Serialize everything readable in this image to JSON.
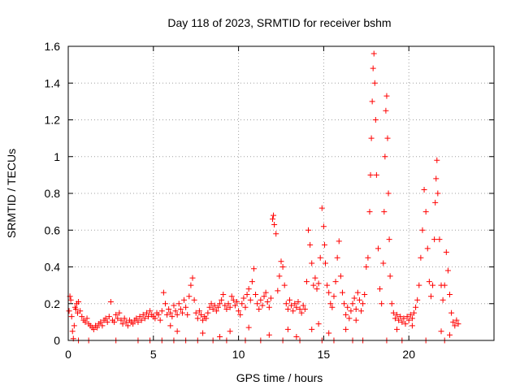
{
  "chart_data": {
    "type": "scatter",
    "title": "Day 118 of 2023, SRMTID for receiver bshm",
    "xlabel": "GPS time / hours",
    "ylabel": "SRMTID / TECUs",
    "xlim": [
      0,
      25
    ],
    "ylim": [
      0,
      1.6
    ],
    "x_ticks": [
      0,
      5,
      10,
      15,
      20
    ],
    "x_tick_labels": [
      "0",
      "5",
      "10",
      "15",
      "20"
    ],
    "y_ticks": [
      0,
      0.2,
      0.4,
      0.6,
      0.8,
      1.0,
      1.2,
      1.4,
      1.6
    ],
    "y_tick_labels": [
      "0",
      "0.2",
      "0.4",
      "0.6",
      "0.8",
      "1",
      "1.2",
      "1.4",
      "1.6"
    ],
    "grid": true,
    "marker": "+",
    "colors": {
      "series": "#ff0000",
      "grid": "#a0a0a0",
      "axes": "#000000"
    },
    "series": [
      {
        "name": "SRMTID",
        "points": [
          [
            0.05,
            0.16
          ],
          [
            0.1,
            0.24
          ],
          [
            0.15,
            0.22
          ],
          [
            0.2,
            0.13
          ],
          [
            0.25,
            0.05
          ],
          [
            0.3,
            0.01
          ],
          [
            0.35,
            0.08
          ],
          [
            0.4,
            0.18
          ],
          [
            0.45,
            0.17
          ],
          [
            0.5,
            0.2
          ],
          [
            0.55,
            0.15
          ],
          [
            0.6,
            0.21
          ],
          [
            0.7,
            0.16
          ],
          [
            0.8,
            0.13
          ],
          [
            0.9,
            0.11
          ],
          [
            1.0,
            0.1
          ],
          [
            1.1,
            0.12
          ],
          [
            1.2,
            0.09
          ],
          [
            1.3,
            0.08
          ],
          [
            1.4,
            0.07
          ],
          [
            1.5,
            0.06
          ],
          [
            1.6,
            0.08
          ],
          [
            1.7,
            0.07
          ],
          [
            1.8,
            0.09
          ],
          [
            1.9,
            0.1
          ],
          [
            2.0,
            0.08
          ],
          [
            2.1,
            0.11
          ],
          [
            2.2,
            0.12
          ],
          [
            2.3,
            0.1
          ],
          [
            2.4,
            0.13
          ],
          [
            2.5,
            0.21
          ],
          [
            2.6,
            0.11
          ],
          [
            2.7,
            0.1
          ],
          [
            2.8,
            0.14
          ],
          [
            2.9,
            0.12
          ],
          [
            3.0,
            0.15
          ],
          [
            3.1,
            0.11
          ],
          [
            3.2,
            0.09
          ],
          [
            3.3,
            0.12
          ],
          [
            3.4,
            0.1
          ],
          [
            3.5,
            0.08
          ],
          [
            3.6,
            0.11
          ],
          [
            3.7,
            0.1
          ],
          [
            3.8,
            0.09
          ],
          [
            3.9,
            0.11
          ],
          [
            4.0,
            0.12
          ],
          [
            4.1,
            0.1
          ],
          [
            4.2,
            0.13
          ],
          [
            4.3,
            0.11
          ],
          [
            4.4,
            0.14
          ],
          [
            4.5,
            0.12
          ],
          [
            4.6,
            0.15
          ],
          [
            4.7,
            0.13
          ],
          [
            4.8,
            0.16
          ],
          [
            4.9,
            0.14
          ],
          [
            5.0,
            0.13
          ],
          [
            5.1,
            0.12
          ],
          [
            5.2,
            0.15
          ],
          [
            5.3,
            0.14
          ],
          [
            5.4,
            0.11
          ],
          [
            5.5,
            0.16
          ],
          [
            5.6,
            0.26
          ],
          [
            5.7,
            0.2
          ],
          [
            5.8,
            0.14
          ],
          [
            5.9,
            0.17
          ],
          [
            6.0,
            0.15
          ],
          [
            6.1,
            0.13
          ],
          [
            6.2,
            0.19
          ],
          [
            6.3,
            0.16
          ],
          [
            6.4,
            0.14
          ],
          [
            6.5,
            0.2
          ],
          [
            6.6,
            0.17
          ],
          [
            6.7,
            0.15
          ],
          [
            6.8,
            0.22
          ],
          [
            6.9,
            0.18
          ],
          [
            7.0,
            0.14
          ],
          [
            7.1,
            0.24
          ],
          [
            7.2,
            0.3
          ],
          [
            7.3,
            0.34
          ],
          [
            7.4,
            0.22
          ],
          [
            7.5,
            0.15
          ],
          [
            7.6,
            0.12
          ],
          [
            7.7,
            0.16
          ],
          [
            7.8,
            0.14
          ],
          [
            7.9,
            0.11
          ],
          [
            8.0,
            0.13
          ],
          [
            8.1,
            0.12
          ],
          [
            8.2,
            0.15
          ],
          [
            8.3,
            0.18
          ],
          [
            8.4,
            0.2
          ],
          [
            8.5,
            0.17
          ],
          [
            8.6,
            0.19
          ],
          [
            8.7,
            0.16
          ],
          [
            8.8,
            0.18
          ],
          [
            8.9,
            0.2
          ],
          [
            9.0,
            0.22
          ],
          [
            9.1,
            0.25
          ],
          [
            9.2,
            0.19
          ],
          [
            9.3,
            0.17
          ],
          [
            9.4,
            0.2
          ],
          [
            9.5,
            0.18
          ],
          [
            9.6,
            0.24
          ],
          [
            9.7,
            0.22
          ],
          [
            9.8,
            0.19
          ],
          [
            9.9,
            0.21
          ],
          [
            10.0,
            0.16
          ],
          [
            10.1,
            0.14
          ],
          [
            10.2,
            0.2
          ],
          [
            10.3,
            0.23
          ],
          [
            10.4,
            0.18
          ],
          [
            10.5,
            0.25
          ],
          [
            10.6,
            0.28
          ],
          [
            10.7,
            0.22
          ],
          [
            10.8,
            0.32
          ],
          [
            10.9,
            0.39
          ],
          [
            11.0,
            0.25
          ],
          [
            11.1,
            0.2
          ],
          [
            11.2,
            0.17
          ],
          [
            11.3,
            0.22
          ],
          [
            11.4,
            0.19
          ],
          [
            11.5,
            0.24
          ],
          [
            11.6,
            0.26
          ],
          [
            11.7,
            0.21
          ],
          [
            11.8,
            0.18
          ],
          [
            11.9,
            0.23
          ],
          [
            12.0,
            0.66
          ],
          [
            12.05,
            0.68
          ],
          [
            12.1,
            0.63
          ],
          [
            12.2,
            0.58
          ],
          [
            12.3,
            0.27
          ],
          [
            12.4,
            0.35
          ],
          [
            12.5,
            0.43
          ],
          [
            12.6,
            0.4
          ],
          [
            12.7,
            0.3
          ],
          [
            12.8,
            0.2
          ],
          [
            12.9,
            0.17
          ],
          [
            13.0,
            0.22
          ],
          [
            13.1,
            0.19
          ],
          [
            13.2,
            0.16
          ],
          [
            13.3,
            0.2
          ],
          [
            13.4,
            0.18
          ],
          [
            13.5,
            0.21
          ],
          [
            13.6,
            0.17
          ],
          [
            13.7,
            0.15
          ],
          [
            13.8,
            0.19
          ],
          [
            13.9,
            0.17
          ],
          [
            14.0,
            0.32
          ],
          [
            14.1,
            0.6
          ],
          [
            14.2,
            0.52
          ],
          [
            14.3,
            0.42
          ],
          [
            14.4,
            0.3
          ],
          [
            14.5,
            0.34
          ],
          [
            14.6,
            0.28
          ],
          [
            14.7,
            0.31
          ],
          [
            14.8,
            0.45
          ],
          [
            14.9,
            0.72
          ],
          [
            15.0,
            0.62
          ],
          [
            15.05,
            0.52
          ],
          [
            15.1,
            0.42
          ],
          [
            15.2,
            0.3
          ],
          [
            15.3,
            0.26
          ],
          [
            15.4,
            0.2
          ],
          [
            15.5,
            0.18
          ],
          [
            15.6,
            0.24
          ],
          [
            15.7,
            0.32
          ],
          [
            15.8,
            0.45
          ],
          [
            15.9,
            0.54
          ],
          [
            16.0,
            0.35
          ],
          [
            16.1,
            0.26
          ],
          [
            16.2,
            0.2
          ],
          [
            16.3,
            0.14
          ],
          [
            16.4,
            0.18
          ],
          [
            16.5,
            0.12
          ],
          [
            16.6,
            0.16
          ],
          [
            16.7,
            0.2
          ],
          [
            16.8,
            0.23
          ],
          [
            16.9,
            0.17
          ],
          [
            17.0,
            0.26
          ],
          [
            17.1,
            0.22
          ],
          [
            17.2,
            0.16
          ],
          [
            17.3,
            0.2
          ],
          [
            17.4,
            0.25
          ],
          [
            17.5,
            0.4
          ],
          [
            17.6,
            0.45
          ],
          [
            17.7,
            0.7
          ],
          [
            17.75,
            0.9
          ],
          [
            17.8,
            1.1
          ],
          [
            17.85,
            1.3
          ],
          [
            17.9,
            1.48
          ],
          [
            17.95,
            1.56
          ],
          [
            18.0,
            1.4
          ],
          [
            18.05,
            1.2
          ],
          [
            18.1,
            0.9
          ],
          [
            18.2,
            0.5
          ],
          [
            18.3,
            0.28
          ],
          [
            18.4,
            0.2
          ],
          [
            18.5,
            0.42
          ],
          [
            18.55,
            0.7
          ],
          [
            18.6,
            1.0
          ],
          [
            18.65,
            1.25
          ],
          [
            18.7,
            1.33
          ],
          [
            18.75,
            1.1
          ],
          [
            18.8,
            0.8
          ],
          [
            18.85,
            0.55
          ],
          [
            18.9,
            0.35
          ],
          [
            19.0,
            0.2
          ],
          [
            19.1,
            0.15
          ],
          [
            19.2,
            0.12
          ],
          [
            19.3,
            0.14
          ],
          [
            19.4,
            0.11
          ],
          [
            19.5,
            0.13
          ],
          [
            19.6,
            0.1
          ],
          [
            19.7,
            0.12
          ],
          [
            19.8,
            0.09
          ],
          [
            19.9,
            0.13
          ],
          [
            20.0,
            0.11
          ],
          [
            20.1,
            0.14
          ],
          [
            20.2,
            0.12
          ],
          [
            20.3,
            0.15
          ],
          [
            20.4,
            0.18
          ],
          [
            20.5,
            0.22
          ],
          [
            20.6,
            0.3
          ],
          [
            20.7,
            0.45
          ],
          [
            20.8,
            0.6
          ],
          [
            20.9,
            0.82
          ],
          [
            21.0,
            0.7
          ],
          [
            21.1,
            0.5
          ],
          [
            21.2,
            0.32
          ],
          [
            21.3,
            0.24
          ],
          [
            21.4,
            0.3
          ],
          [
            21.5,
            0.55
          ],
          [
            21.55,
            0.75
          ],
          [
            21.6,
            0.88
          ],
          [
            21.65,
            0.98
          ],
          [
            21.7,
            0.8
          ],
          [
            21.8,
            0.55
          ],
          [
            21.9,
            0.3
          ],
          [
            22.0,
            0.22
          ],
          [
            22.1,
            0.3
          ],
          [
            22.2,
            0.48
          ],
          [
            22.3,
            0.38
          ],
          [
            22.4,
            0.25
          ],
          [
            22.5,
            0.15
          ],
          [
            22.6,
            0.1
          ],
          [
            22.7,
            0.08
          ],
          [
            22.8,
            0.11
          ],
          [
            22.9,
            0.09
          ],
          [
            0.6,
            0.0
          ],
          [
            1.2,
            0.0
          ],
          [
            2.8,
            0.0
          ],
          [
            4.1,
            0.0
          ],
          [
            4.8,
            0.0
          ],
          [
            5.5,
            0.0
          ],
          [
            6.2,
            0.0
          ],
          [
            6.9,
            0.0
          ],
          [
            7.6,
            0.0
          ],
          [
            8.5,
            0.0
          ],
          [
            9.3,
            0.0
          ],
          [
            10.4,
            0.0
          ],
          [
            11.3,
            0.0
          ],
          [
            12.6,
            0.0
          ],
          [
            13.6,
            0.0
          ],
          [
            14.9,
            0.0
          ],
          [
            15.6,
            0.0
          ],
          [
            16.7,
            0.0
          ],
          [
            17.3,
            0.0
          ],
          [
            18.7,
            0.0
          ],
          [
            19.6,
            0.0
          ],
          [
            21.0,
            0.0
          ],
          [
            22.1,
            0.0
          ],
          [
            6.0,
            0.08
          ],
          [
            6.4,
            0.05
          ],
          [
            7.9,
            0.04
          ],
          [
            8.9,
            0.02
          ],
          [
            9.5,
            0.05
          ],
          [
            10.6,
            0.07
          ],
          [
            11.8,
            0.03
          ],
          [
            12.9,
            0.06
          ],
          [
            13.4,
            0.02
          ],
          [
            14.3,
            0.06
          ],
          [
            14.7,
            0.09
          ],
          [
            15.3,
            0.04
          ],
          [
            16.3,
            0.06
          ],
          [
            16.9,
            0.11
          ],
          [
            19.3,
            0.06
          ],
          [
            20.2,
            0.08
          ],
          [
            21.9,
            0.05
          ],
          [
            22.4,
            0.03
          ]
        ]
      }
    ]
  }
}
